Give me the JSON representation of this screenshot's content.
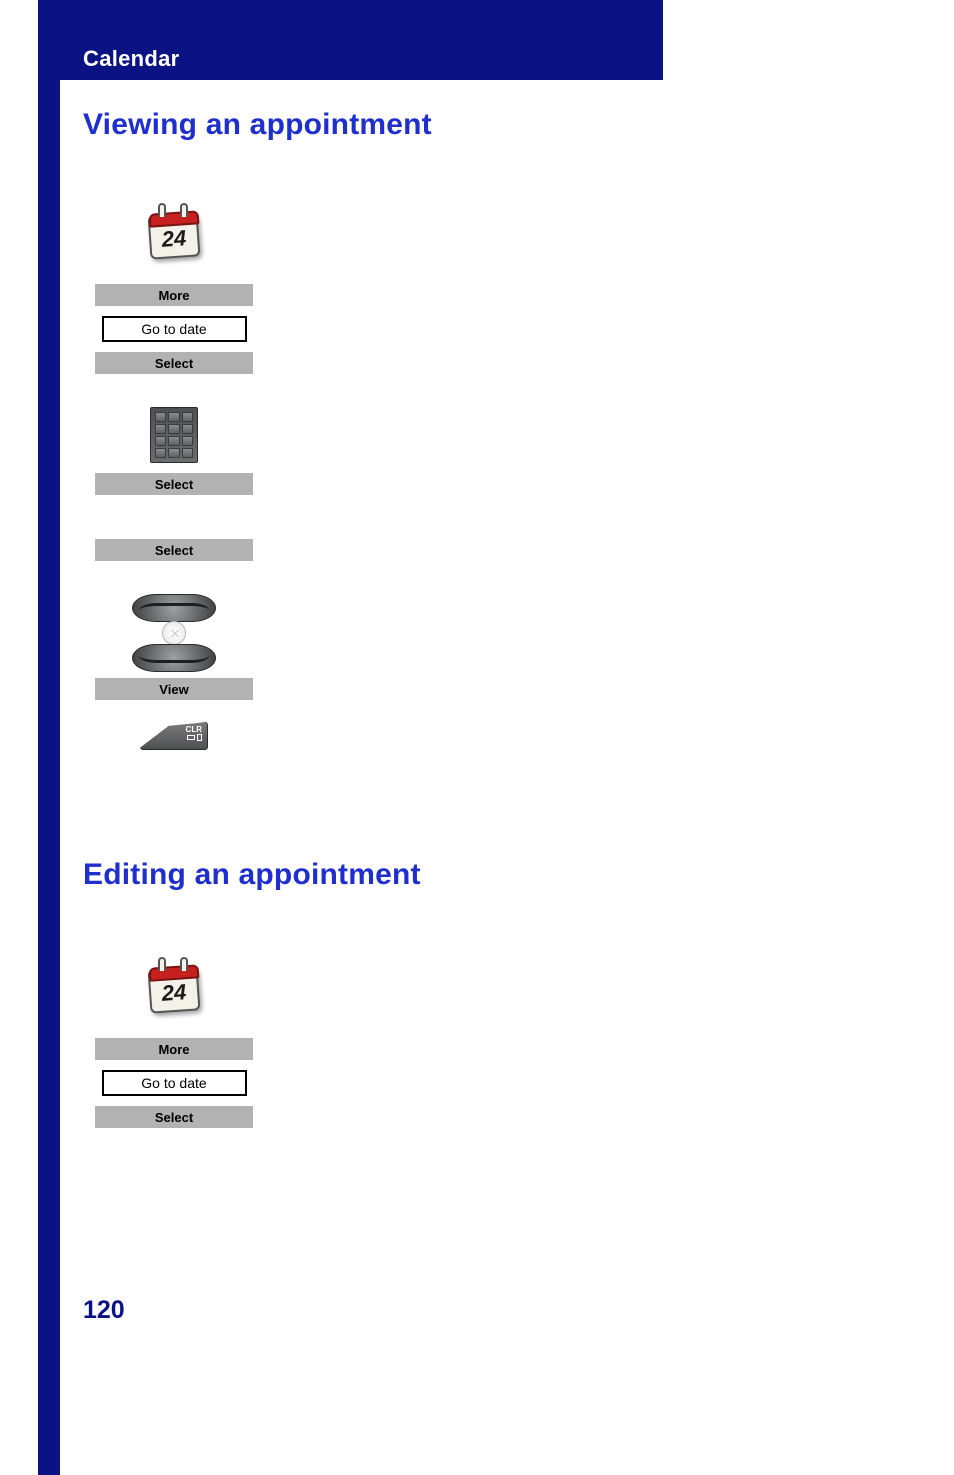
{
  "colors": {
    "brand_blue": "#0b1283",
    "title_blue": "#1e2ecf",
    "button_gray": "#b2b2b2",
    "page_bg": "#ffffff",
    "calendar_red": "#c62021"
  },
  "header": {
    "section": "Calendar"
  },
  "page_number": "120",
  "section_titles": {
    "viewing": "Viewing an appointment",
    "editing": "Editing an appointment"
  },
  "icons": {
    "calendar_day": "24",
    "clr_label": "CLR"
  },
  "viewing_steps": {
    "more": "More",
    "go_to_date": "Go to date",
    "select1": "Select",
    "select2": "Select",
    "select3": "Select",
    "view": "View"
  },
  "editing_steps": {
    "more": "More",
    "go_to_date": "Go to date",
    "select": "Select"
  }
}
